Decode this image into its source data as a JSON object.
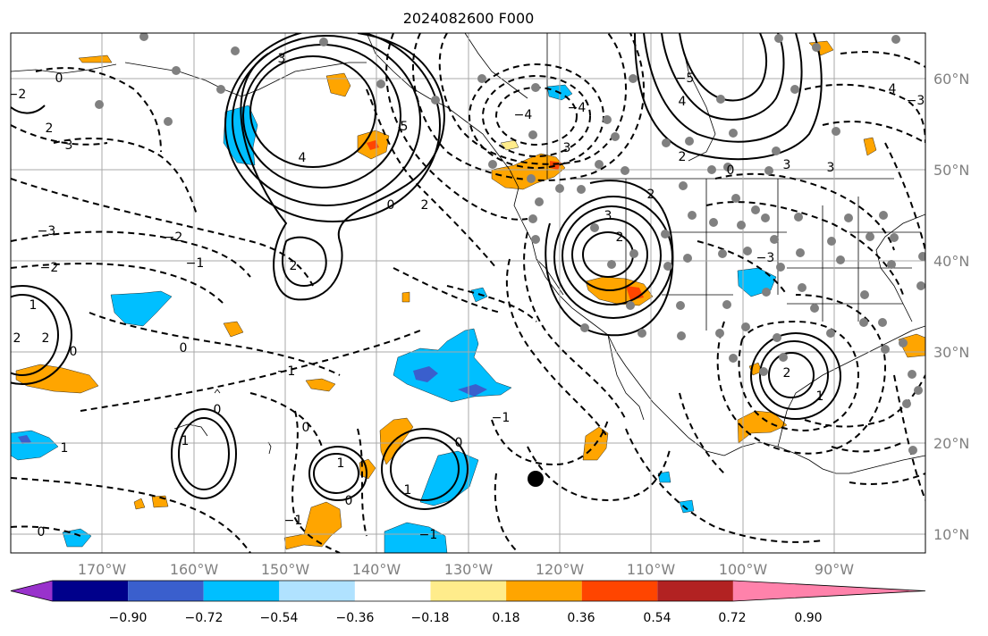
{
  "title": "2024082600 F000",
  "lat_labels": [
    "60°N",
    "50°N",
    "40°N",
    "30°N",
    "20°N",
    "10°N"
  ],
  "lon_labels": [
    "170°W",
    "160°W",
    "150°W",
    "140°W",
    "130°W",
    "120°W",
    "110°W",
    "100°W",
    "90°W"
  ],
  "colorbar": {
    "tick_labels": [
      "−0.90",
      "−0.72",
      "−0.54",
      "−0.36",
      "−0.18",
      "0.18",
      "0.36",
      "0.54",
      "0.72",
      "0.90"
    ],
    "colors": [
      "#9932cc",
      "#00008b",
      "#3a5fcd",
      "#00bfff",
      "#b0e2ff",
      "#ffffff",
      "#ffec8b",
      "#ffa500",
      "#ff4500",
      "#b22222",
      "#ff82ab"
    ]
  },
  "contour_labels": {
    "c1": "0",
    "c2": "2",
    "c3": "3",
    "c4": "−2",
    "c5": "3",
    "c6": "5",
    "c7": "4",
    "c8": "0",
    "c9": "−4",
    "c10": "−4",
    "c11": "3",
    "c12": "2",
    "c13": "−5",
    "c14": "4",
    "c15": "2",
    "c16": "0",
    "c17": "3",
    "c18": "3",
    "c19": "−3",
    "c20": "−2",
    "c21": "−1",
    "c22": "−2",
    "c23": "2",
    "c24": "2",
    "c25": "2",
    "c26": "3",
    "c27": "−3",
    "c28": "1",
    "c29": "2",
    "c30": "2",
    "c31": "0",
    "c32": "0",
    "c33": "−1",
    "c34": "2",
    "c35": "−1",
    "c36": "0",
    "c37": "1",
    "c38": "1",
    "c39": "0",
    "c40": "1",
    "c41": "1",
    "c42": "0",
    "c43": "1",
    "c44": "−1",
    "c45": "0",
    "c46": "−1",
    "c47": "4",
    "c48": "−3",
    "c49": "0"
  }
}
